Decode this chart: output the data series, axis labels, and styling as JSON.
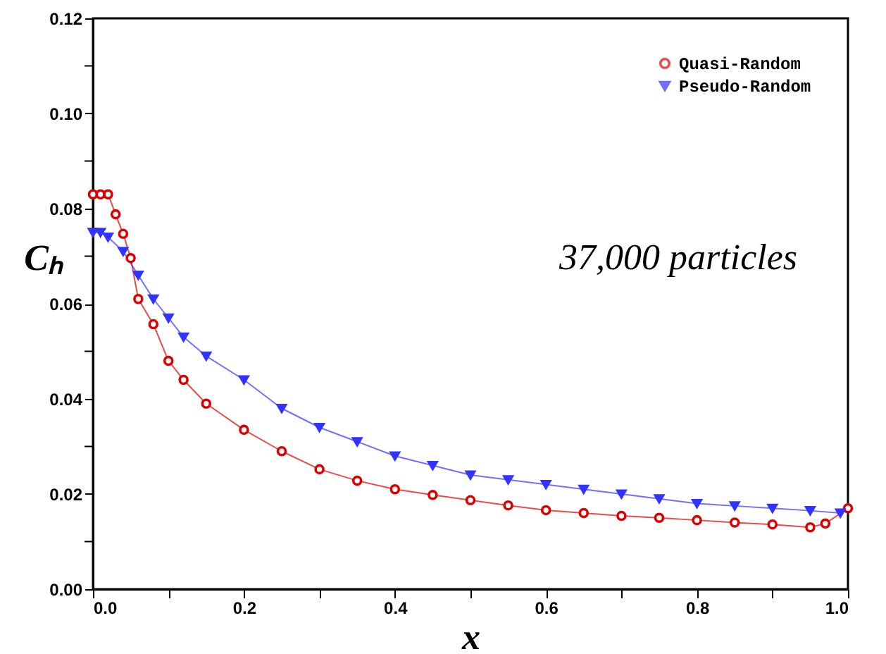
{
  "chart_data": {
    "type": "line",
    "xlabel": "x",
    "ylabel": "Cₕ",
    "annotations": [
      "37,000 particles"
    ],
    "xlim": [
      0,
      1
    ],
    "ylim": [
      0,
      0.12
    ],
    "xticks": [
      {
        "value": 0,
        "label": "0.0"
      },
      {
        "value": 0.1,
        "label": null
      },
      {
        "value": 0.2,
        "label": "0.2"
      },
      {
        "value": 0.3,
        "label": null
      },
      {
        "value": 0.4,
        "label": "0.4"
      },
      {
        "value": 0.5,
        "label": null
      },
      {
        "value": 0.6,
        "label": "0.6"
      },
      {
        "value": 0.7,
        "label": null
      },
      {
        "value": 0.8,
        "label": "0.8"
      },
      {
        "value": 0.9,
        "label": null
      },
      {
        "value": 1,
        "label": "1.0"
      }
    ],
    "yticks": [
      {
        "value": 0,
        "label": "0.00"
      },
      {
        "value": 0.01,
        "label": null
      },
      {
        "value": 0.02,
        "label": "0.02"
      },
      {
        "value": 0.03,
        "label": null
      },
      {
        "value": 0.04,
        "label": "0.04"
      },
      {
        "value": 0.05,
        "label": null
      },
      {
        "value": 0.06,
        "label": "0.06"
      },
      {
        "value": 0.07,
        "label": null
      },
      {
        "value": 0.08,
        "label": "0.08"
      },
      {
        "value": 0.09,
        "label": null
      },
      {
        "value": 0.1,
        "label": "0.10"
      },
      {
        "value": 0.11,
        "label": null
      },
      {
        "value": 0.12,
        "label": "0.12"
      }
    ],
    "grid": false,
    "legend": "top right",
    "line_style": "solid",
    "series": [
      {
        "name": "Quasi-Random",
        "color": "#dd0000",
        "marker": "circle",
        "x": [
          0.0,
          0.01,
          0.02,
          0.03,
          0.04,
          0.05,
          0.06,
          0.08,
          0.1,
          0.12,
          0.15,
          0.2,
          0.25,
          0.3,
          0.35,
          0.4,
          0.45,
          0.5,
          0.55,
          0.6,
          0.65,
          0.7,
          0.75,
          0.8,
          0.85,
          0.9,
          0.95,
          0.97,
          1.0
        ],
        "values": [
          0.083,
          0.083,
          0.083,
          0.0788,
          0.0747,
          0.0696,
          0.061,
          0.0557,
          0.048,
          0.044,
          0.039,
          0.0335,
          0.029,
          0.0252,
          0.0228,
          0.021,
          0.0198,
          0.0187,
          0.0176,
          0.0166,
          0.016,
          0.0154,
          0.015,
          0.0145,
          0.014,
          0.0136,
          0.013,
          0.0138,
          0.017
        ]
      },
      {
        "name": "Pseudo-Random",
        "color": "#3333ff",
        "marker": "triangle",
        "x": [
          0.0,
          0.01,
          0.02,
          0.04,
          0.06,
          0.08,
          0.1,
          0.12,
          0.15,
          0.2,
          0.25,
          0.3,
          0.35,
          0.4,
          0.45,
          0.5,
          0.55,
          0.6,
          0.65,
          0.7,
          0.75,
          0.8,
          0.85,
          0.9,
          0.95,
          0.99
        ],
        "values": [
          0.075,
          0.075,
          0.074,
          0.071,
          0.066,
          0.061,
          0.057,
          0.053,
          0.049,
          0.044,
          0.038,
          0.034,
          0.031,
          0.028,
          0.026,
          0.024,
          0.023,
          0.022,
          0.021,
          0.02,
          0.019,
          0.018,
          0.0175,
          0.017,
          0.0165,
          0.016
        ]
      }
    ]
  }
}
